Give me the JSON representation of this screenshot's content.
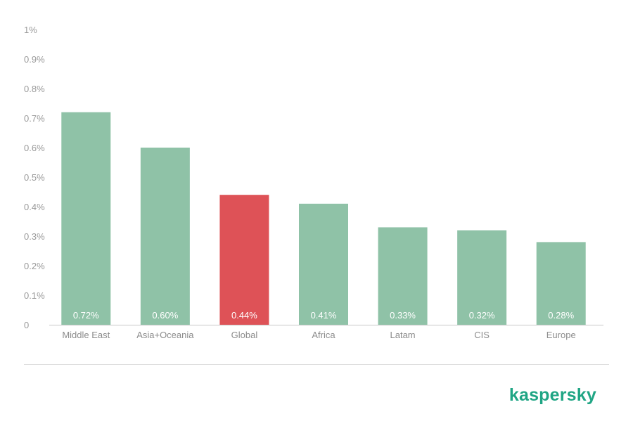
{
  "chart_data": {
    "type": "bar",
    "categories": [
      "Middle East",
      "Asia+Oceania",
      "Global",
      "Africa",
      "Latam",
      "CIS",
      "Europe"
    ],
    "values": [
      0.72,
      0.6,
      0.44,
      0.41,
      0.33,
      0.32,
      0.28
    ],
    "data_labels": [
      "0.72%",
      "0.60%",
      "0.44%",
      "0.41%",
      "0.33%",
      "0.32%",
      "0.28%"
    ],
    "yticks": [
      0,
      0.1,
      0.2,
      0.3,
      0.4,
      0.5,
      0.6,
      0.7,
      0.8,
      0.9,
      1
    ],
    "ytick_labels": [
      "0",
      "0.1%",
      "0.2%",
      "0.3%",
      "0.4%",
      "0.5%",
      "0.6%",
      "0.7%",
      "0.8%",
      "0.9%",
      "1%"
    ],
    "ylim": [
      0,
      1
    ],
    "highlight_category": "Global",
    "grid": false,
    "title": "",
    "xlabel": "",
    "ylabel": "",
    "colors": {
      "bar": "#8fc2a7",
      "highlight": "#de5257",
      "axis_line": "#c8c8c8",
      "brand": "#1fa584"
    }
  },
  "brand": {
    "logo_text": "kaspersky"
  }
}
